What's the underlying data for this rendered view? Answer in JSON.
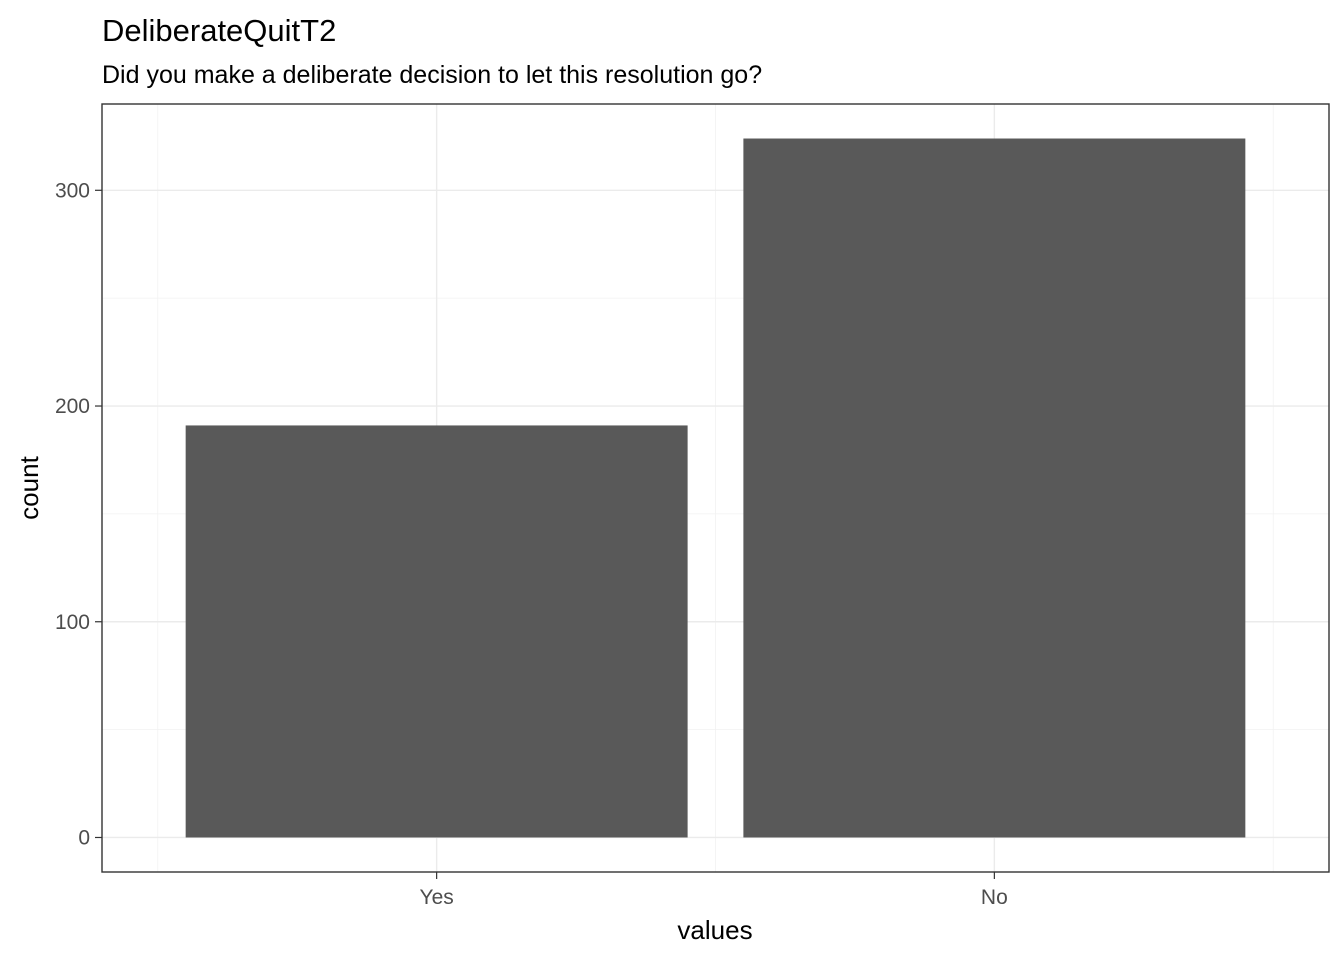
{
  "chart_data": {
    "type": "bar",
    "title": "DeliberateQuitT2",
    "subtitle": "Did you make a deliberate decision to let this resolution go?",
    "xlabel": "values",
    "ylabel": "count",
    "categories": [
      "Yes",
      "No"
    ],
    "values": [
      191,
      324
    ],
    "ylim": [
      -16,
      340
    ],
    "yticks": [
      0,
      100,
      200,
      300
    ],
    "grid": true,
    "bar_color": "#595959",
    "theme": "bw"
  }
}
